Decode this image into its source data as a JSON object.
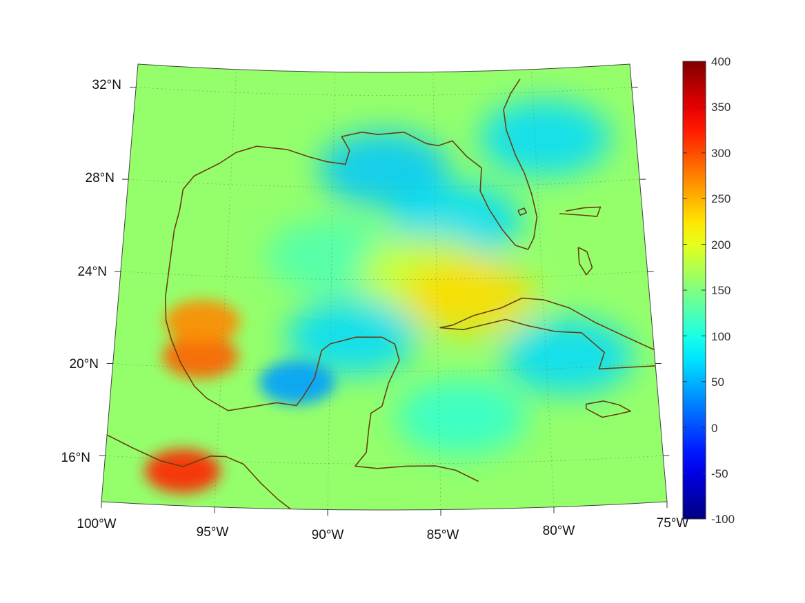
{
  "map": {
    "lat_ticks": [
      "32°N",
      "28°N",
      "24°N",
      "20°N",
      "16°N"
    ],
    "lon_ticks": [
      "100°W",
      "95°W",
      "90°W",
      "85°W",
      "80°W",
      "75°W"
    ],
    "lat_range": [
      14,
      33
    ],
    "lon_range": [
      -100,
      -75
    ],
    "projection": "conic",
    "graticule": "dotted",
    "coastline_color": "#6b3e11",
    "regions": [
      "Gulf of Mexico",
      "Florida",
      "Cuba",
      "Yucatan Peninsula",
      "Jamaica",
      "Bahamas",
      "Mexico",
      "Central America"
    ]
  },
  "colorbar": {
    "colormap": "jet",
    "min": -100,
    "max": 400,
    "ticks": [
      "400",
      "350",
      "300",
      "250",
      "200",
      "150",
      "100",
      "50",
      "0",
      "-50",
      "-100"
    ]
  },
  "field": {
    "background_value": 160,
    "features": [
      {
        "name": "open-gulf",
        "lon": -90,
        "lat": 25,
        "value": 125
      },
      {
        "name": "northern-gulf-shelf",
        "lon": -87.5,
        "lat": 28.8,
        "value": 60
      },
      {
        "name": "west-florida-shelf",
        "lon": -84,
        "lat": 26.5,
        "value": 70
      },
      {
        "name": "gulf-interior-warm",
        "lon": -85.5,
        "lat": 24.3,
        "value": 190
      },
      {
        "name": "campeche-bank",
        "lon": -89,
        "lat": 21.5,
        "value": 70
      },
      {
        "name": "bay-of-campeche",
        "lon": -91.5,
        "lat": 19.5,
        "value": 40
      },
      {
        "name": "east-florida",
        "lon": -79.5,
        "lat": 30,
        "value": 70
      },
      {
        "name": "gulf-of-tehuantepec",
        "lon": -96.5,
        "lat": 15.5,
        "value": 320
      },
      {
        "name": "veracruz-coast",
        "lon": -96,
        "lat": 20.5,
        "value": 290
      },
      {
        "name": "tamaulipas-coast",
        "lon": -96,
        "lat": 22,
        "value": 270
      },
      {
        "name": "north-of-cuba",
        "lon": -83.5,
        "lat": 23.2,
        "value": 230
      },
      {
        "name": "south-of-cuba",
        "lon": -79,
        "lat": 20.5,
        "value": 70
      },
      {
        "name": "caribbean",
        "lon": -84,
        "lat": 18,
        "value": 110
      }
    ]
  }
}
